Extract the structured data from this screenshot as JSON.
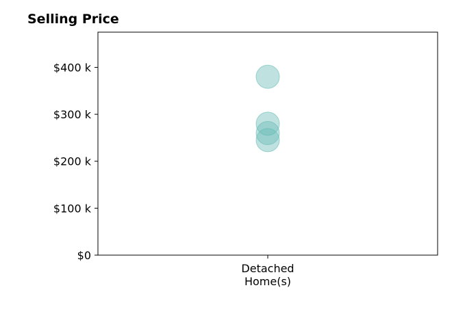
{
  "chart_data": {
    "type": "scatter",
    "title": "Selling Price",
    "xlabel": "",
    "ylabel": "",
    "categories": [
      "Detached\nHome(s)"
    ],
    "series": [
      {
        "category": "Detached\nHome(s)",
        "values": [
          380000,
          280000,
          260000,
          245000
        ]
      }
    ],
    "yticks": [
      0,
      100000,
      200000,
      300000,
      400000
    ],
    "ytick_labels": [
      "$0",
      "$100 k",
      "$200 k",
      "$300 k",
      "$400 k"
    ],
    "ylim": [
      0,
      475000
    ],
    "grid": false,
    "legend": "none",
    "marker_color": "#66bbb5"
  }
}
